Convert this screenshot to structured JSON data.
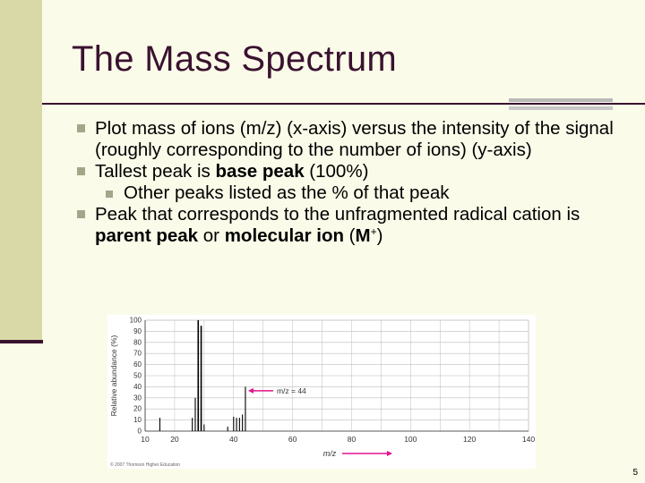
{
  "slide": {
    "title": "The Mass Spectrum",
    "page_number": "5"
  },
  "bullets": [
    {
      "parts": [
        "Plot mass of ions (m/z) (x-axis) versus the intensity of the signal (roughly corresponding to the number of ions) (y-axis)"
      ]
    },
    {
      "pre": "Tallest peak is ",
      "bold": "base peak",
      "post": " (100%)"
    },
    {
      "sub": "Other peaks listed as the % of that peak"
    },
    {
      "pre": "Peak that corresponds to the unfragmented radical cation is ",
      "bold1": "parent peak",
      "mid": " or ",
      "bold2": "molecular ion",
      "post_open": " (",
      "bold3": "M",
      "sup": "+",
      "post_close": ")"
    }
  ],
  "chart_data": {
    "type": "bar",
    "xlabel": "m/z",
    "ylabel": "Relative abundance (%)",
    "xlim": [
      10,
      140
    ],
    "ylim": [
      0,
      100
    ],
    "xticks": [
      10,
      20,
      40,
      60,
      80,
      100,
      120,
      140
    ],
    "yticks": [
      0,
      10,
      20,
      30,
      40,
      50,
      60,
      70,
      80,
      90,
      100
    ],
    "peaks": [
      {
        "x": 15,
        "y": 12
      },
      {
        "x": 26,
        "y": 12
      },
      {
        "x": 27,
        "y": 30
      },
      {
        "x": 28,
        "y": 100
      },
      {
        "x": 29,
        "y": 95
      },
      {
        "x": 30,
        "y": 6
      },
      {
        "x": 38,
        "y": 4
      },
      {
        "x": 40,
        "y": 13
      },
      {
        "x": 41,
        "y": 12
      },
      {
        "x": 42,
        "y": 12
      },
      {
        "x": 43,
        "y": 15
      },
      {
        "x": 44,
        "y": 40
      }
    ],
    "annotation": {
      "text": "m/z = 44",
      "x": 44,
      "y": 38
    },
    "copyright": "© 2007 Thomson Higher Education",
    "colors": {
      "arrow": "#e0138c",
      "bars": "#000000",
      "grid": "#bdbdbd"
    }
  }
}
